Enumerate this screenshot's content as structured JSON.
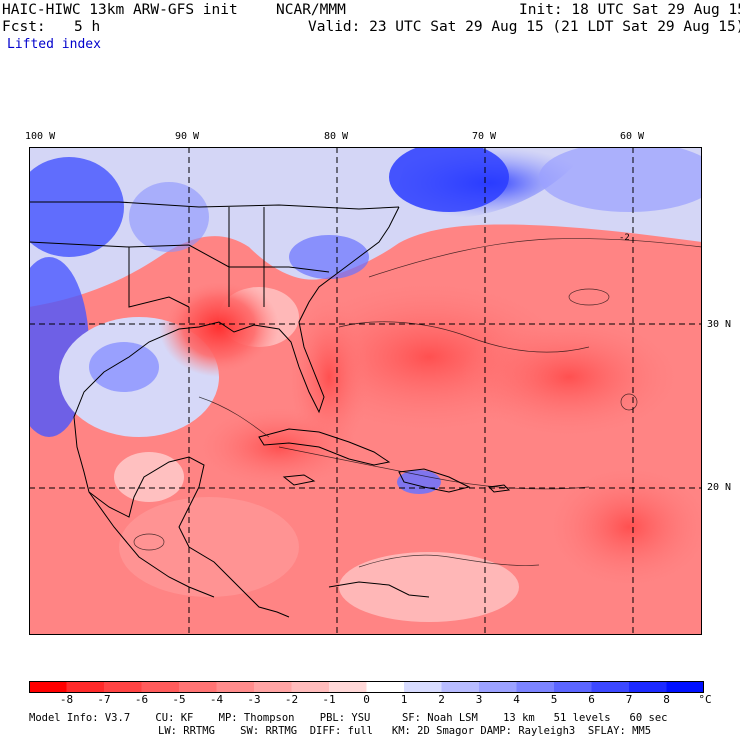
{
  "header": {
    "title_left": "HAIC-HIWC 13km ARW-GFS init",
    "title_org": "NCAR/MMM",
    "init": "Init: 18 UTC Sat 29 Aug 15",
    "fcst_label": "Fcst:",
    "fcst_value": "5 h",
    "valid": "Valid: 23 UTC Sat 29 Aug 15 (21 LDT Sat 29 Aug 15)",
    "field": "Lifted index"
  },
  "map": {
    "lon_labels": [
      "100 W",
      "90 W",
      "80 W",
      "70 W",
      "60 W"
    ],
    "lat_labels": [
      "30 N",
      "20 N"
    ],
    "contour_label": "-2"
  },
  "colorbar": {
    "labels": [
      "-8",
      "-7",
      "-6",
      "-5",
      "-4",
      "-3",
      "-2",
      "-1",
      "0",
      "1",
      "2",
      "3",
      "4",
      "5",
      "6",
      "7",
      "8"
    ],
    "unit": "°C",
    "colors": [
      "#ff0000",
      "#ff2a2a",
      "#ff4444",
      "#ff5c5c",
      "#ff7474",
      "#ff8c8c",
      "#ffa4a4",
      "#ffbcbc",
      "#ffd8d8",
      "#ffffff",
      "#d8dcff",
      "#b8bcff",
      "#9ca2ff",
      "#7c84ff",
      "#5c66ff",
      "#3c48ff",
      "#1c2aff",
      "#0010ff"
    ]
  },
  "footer": {
    "line1": "Model Info: V3.7    CU: KF    MP: Thompson    PBL: YSU     SF: Noah LSM    13 km   51 levels   60 sec",
    "line2": "LW: RRTMG    SW: RRTMG  DIFF: full   KM: 2D Smagor DAMP: Rayleigh3  SFLAY: MM5"
  }
}
